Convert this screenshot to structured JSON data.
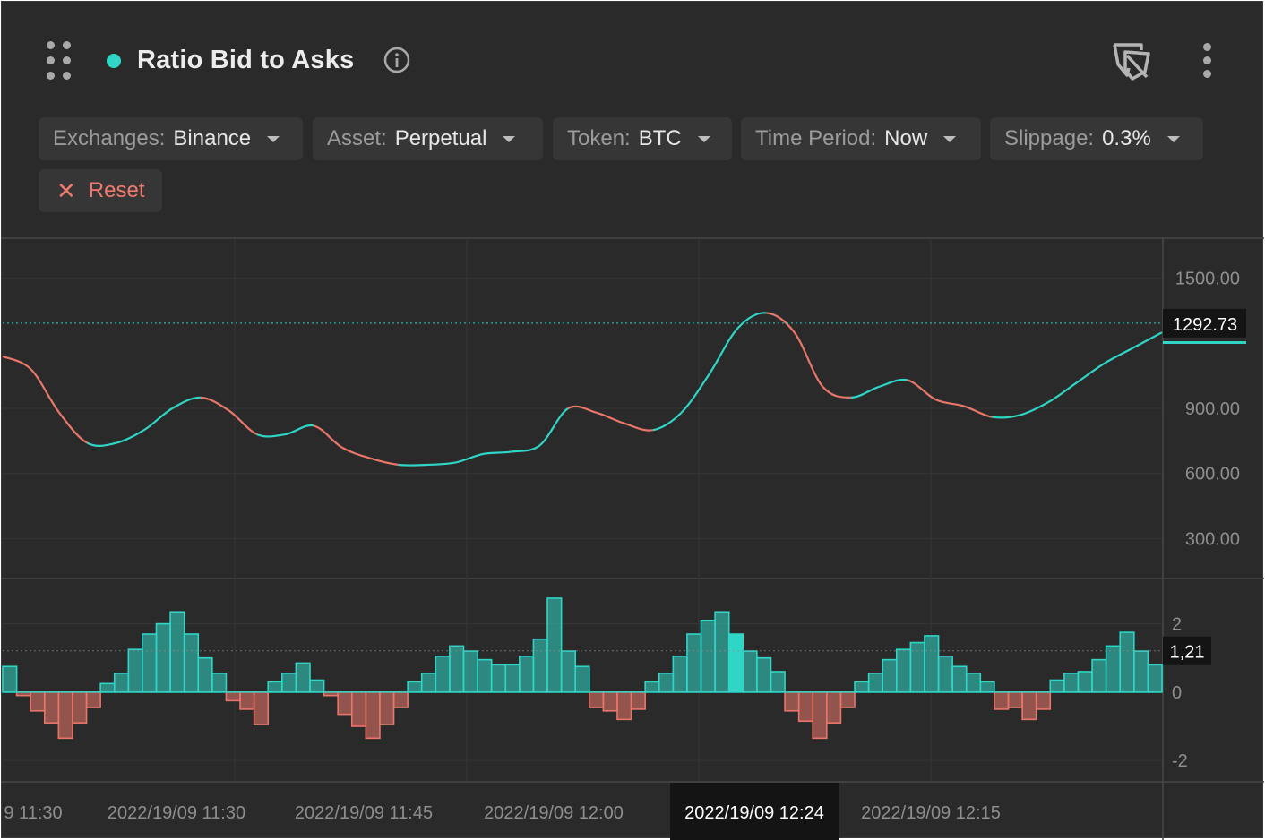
{
  "header": {
    "title": "Ratio Bid to Asks",
    "icons": [
      "drag-handle-icon",
      "status-dot-icon",
      "info-icon",
      "unlink-icon",
      "more-vertical-icon"
    ],
    "accent_color": "#2fd6c6"
  },
  "filters": [
    {
      "label": "Exchanges:",
      "value": "Binance"
    },
    {
      "label": "Asset:",
      "value": "Perpetual"
    },
    {
      "label": "Token:",
      "value": "BTC"
    },
    {
      "label": "Time Period:",
      "value": "Now"
    },
    {
      "label": "Slippage:",
      "value": "0.3%"
    }
  ],
  "reset_label": "Reset",
  "colors": {
    "up": "#2fd6c6",
    "down": "#e9766a",
    "background": "#2a2a2a"
  },
  "chart_data": [
    {
      "type": "line",
      "title": "",
      "y_ticks": [
        "1500.00",
        "900.00",
        "600.00",
        "300.00"
      ],
      "ylim": [
        120,
        1680
      ],
      "current_value": "1292.73",
      "crosshair_index": 53,
      "series": [
        {
          "values": [
            1140,
            1080,
            880,
            740,
            740,
            800,
            900,
            950,
            890,
            780,
            780,
            820,
            720,
            670,
            640,
            640,
            650,
            690,
            700,
            730,
            900,
            880,
            830,
            800,
            880,
            1060,
            1270,
            1340,
            1250,
            1000,
            950,
            1000,
            1030,
            940,
            910,
            860,
            870,
            930,
            1020,
            1110,
            1180,
            1250
          ]
        }
      ]
    },
    {
      "type": "bar",
      "y_ticks": [
        "2",
        "0",
        "-2"
      ],
      "ylim": [
        -2.6,
        3.3
      ],
      "current_value": "1,21",
      "highlight_index": 52,
      "values": [
        0.75,
        -0.1,
        -0.55,
        -0.9,
        -1.35,
        -0.9,
        -0.45,
        0.25,
        0.55,
        1.25,
        1.7,
        2.0,
        2.35,
        1.7,
        1.0,
        0.55,
        -0.25,
        -0.5,
        -0.95,
        0.3,
        0.55,
        0.85,
        0.35,
        -0.1,
        -0.65,
        -1.0,
        -1.35,
        -0.95,
        -0.45,
        0.3,
        0.55,
        1.05,
        1.35,
        1.2,
        0.95,
        0.8,
        0.8,
        1.05,
        1.55,
        2.75,
        1.2,
        0.75,
        -0.45,
        -0.55,
        -0.8,
        -0.5,
        0.3,
        0.55,
        1.05,
        1.7,
        2.1,
        2.35,
        1.7,
        1.2,
        1.0,
        0.6,
        -0.55,
        -0.85,
        -1.35,
        -0.9,
        -0.45,
        0.3,
        0.55,
        0.95,
        1.25,
        1.45,
        1.65,
        1.05,
        0.75,
        0.55,
        0.3,
        -0.5,
        -0.45,
        -0.8,
        -0.5,
        0.35,
        0.55,
        0.6,
        0.95,
        1.35,
        1.75,
        1.2,
        0.8
      ]
    }
  ],
  "x_axis": {
    "labels": [
      "9 11:30",
      "2022/19/09 11:30",
      "2022/19/09 11:45",
      "2022/19/09 12:00",
      "2022/19/09 12:24",
      "2022/19/09 12:15"
    ],
    "active_label": "2022/19/09 12:24"
  }
}
